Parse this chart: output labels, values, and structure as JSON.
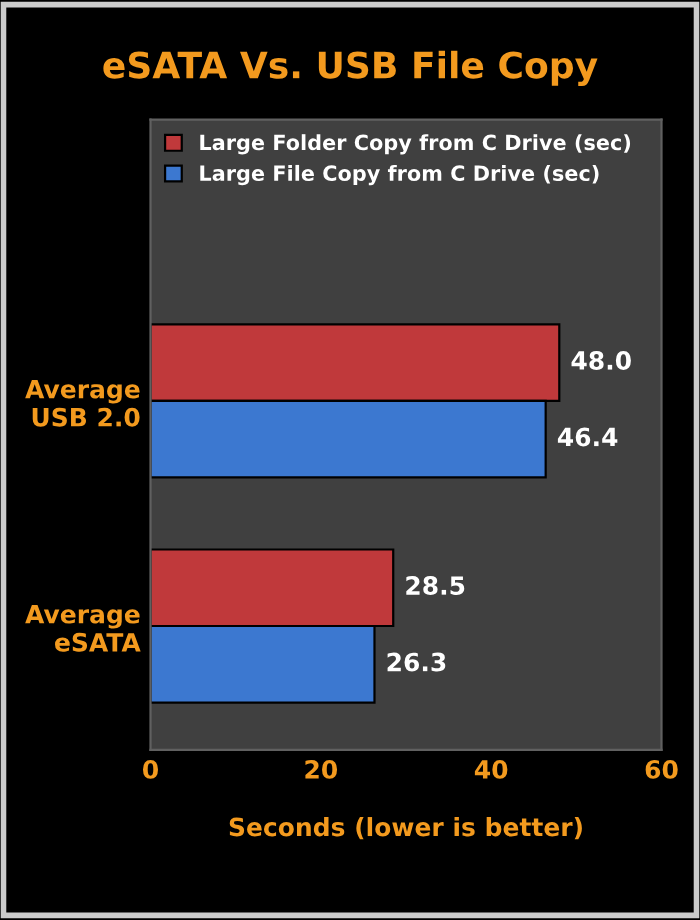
{
  "chart_data": {
    "type": "bar",
    "orientation": "horizontal",
    "title": "eSATA Vs. USB File Copy",
    "xlabel": "Seconds (lower is better)",
    "categories": [
      "Average\nUSB 2.0",
      "Average\neSATA"
    ],
    "series": [
      {
        "name": "Large Folder Copy from C Drive (sec)",
        "color": "#c0393b",
        "values": [
          48.0,
          28.5
        ]
      },
      {
        "name": "Large File Copy from C Drive (sec)",
        "color": "#3c78d0",
        "values": [
          46.4,
          26.3
        ]
      }
    ],
    "value_labels": [
      [
        "48.0",
        "28.5"
      ],
      [
        "46.4",
        "26.3"
      ]
    ],
    "xlim": [
      0,
      60
    ],
    "xticks": [
      0,
      20,
      40,
      60
    ],
    "grid": false,
    "legend": "top left"
  }
}
